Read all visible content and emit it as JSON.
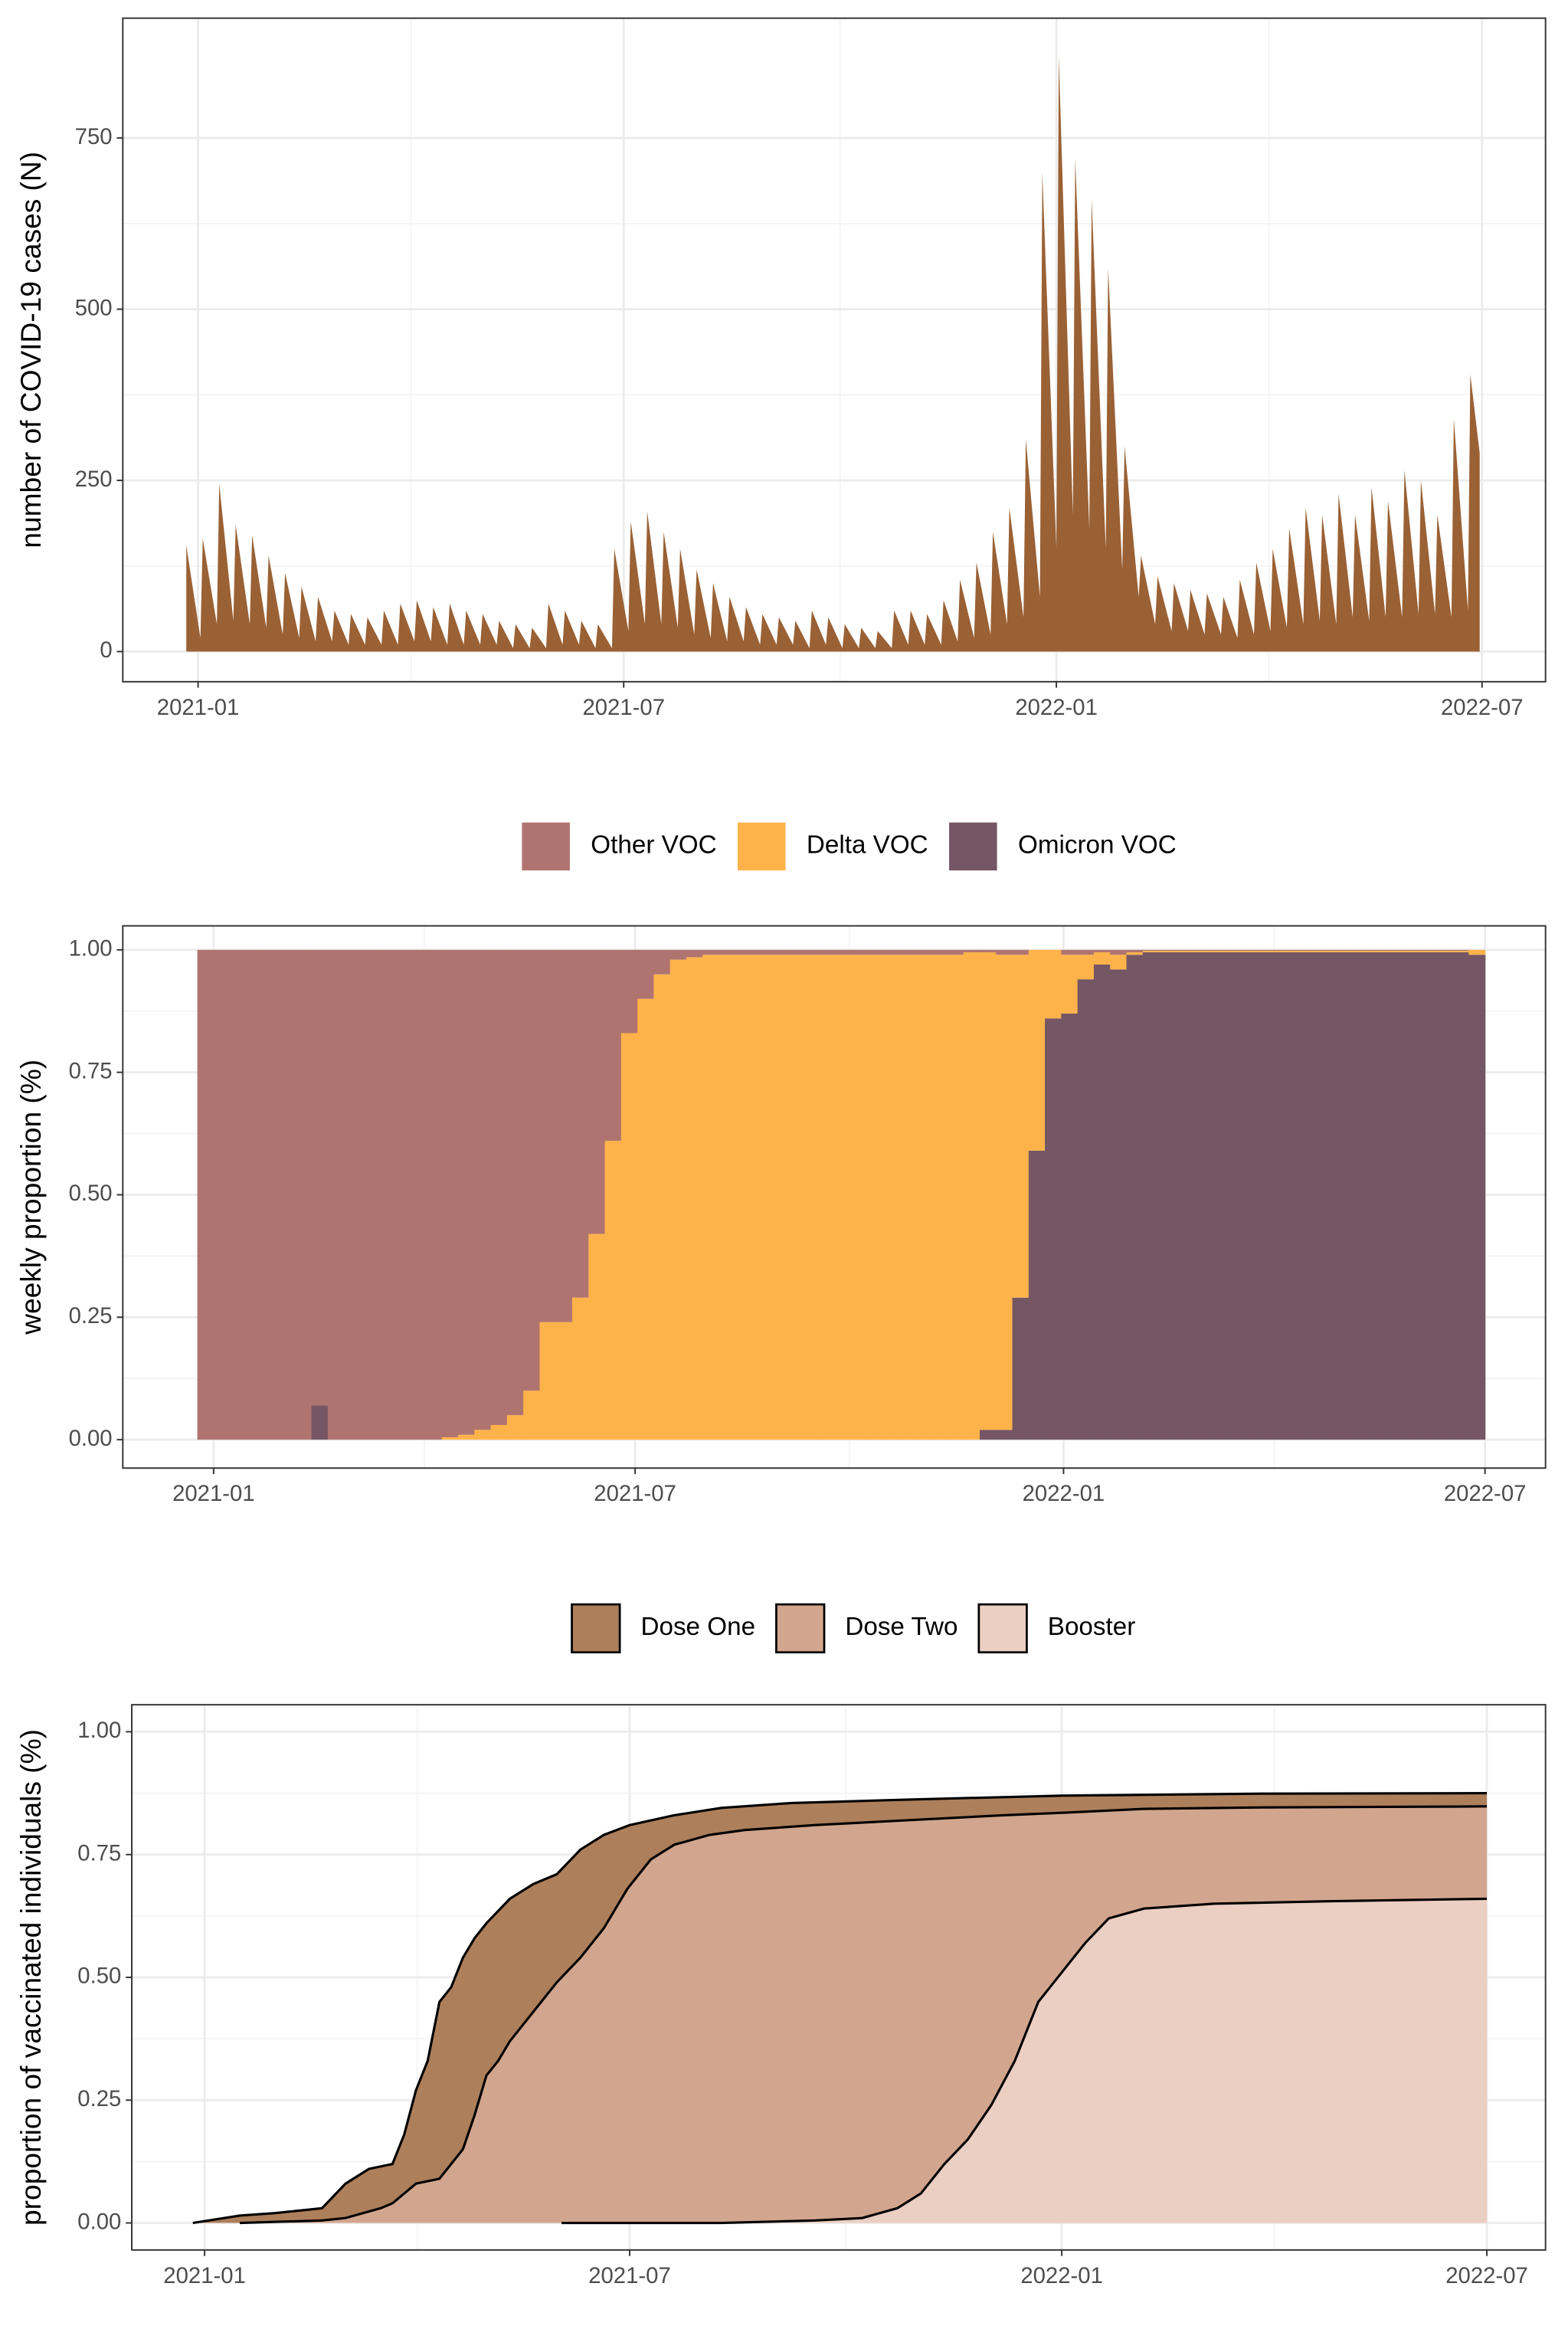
{
  "chart_data": [
    {
      "type": "area",
      "ylabel": "number of COVID-19 cases (N)",
      "color": "#9a6135",
      "grid": true,
      "xlim": [
        -32,
        573
      ],
      "ylim": [
        -44,
        925
      ],
      "xticks": [
        {
          "value": 0,
          "label": "2021-01"
        },
        {
          "value": 181,
          "label": "2021-07"
        },
        {
          "value": 365,
          "label": "2022-01"
        },
        {
          "value": 546,
          "label": "2022-07"
        }
      ],
      "yticks": [
        0,
        250,
        500,
        750
      ],
      "x": [
        -5,
        1,
        2,
        8,
        9,
        15,
        16,
        22,
        23,
        29,
        30,
        36,
        37,
        43,
        44,
        50,
        51,
        57,
        58,
        64,
        65,
        71,
        72,
        78,
        79,
        85,
        86,
        92,
        93,
        99,
        100,
        106,
        107,
        113,
        114,
        120,
        121,
        127,
        128,
        134,
        135,
        141,
        142,
        148,
        149,
        155,
        156,
        162,
        163,
        169,
        170,
        176,
        177,
        183,
        184,
        190,
        191,
        197,
        198,
        204,
        205,
        211,
        212,
        218,
        219,
        225,
        226,
        232,
        233,
        239,
        240,
        246,
        247,
        253,
        254,
        260,
        261,
        267,
        268,
        274,
        275,
        281,
        282,
        288,
        289,
        295,
        296,
        302,
        303,
        309,
        310,
        316,
        317,
        323,
        324,
        330,
        331,
        337,
        338,
        344,
        345,
        351,
        352,
        358,
        359,
        365,
        366,
        372,
        373,
        379,
        380,
        386,
        387,
        393,
        394,
        400,
        401,
        407,
        408,
        414,
        415,
        421,
        422,
        428,
        429,
        435,
        436,
        442,
        443,
        449,
        450,
        456,
        457,
        463,
        464,
        470,
        471,
        477,
        478,
        484,
        485,
        491,
        492,
        498,
        499,
        505,
        506,
        512,
        513,
        519,
        520,
        526,
        527,
        533,
        534,
        540,
        541,
        545
      ],
      "values": [
        155,
        20,
        165,
        40,
        245,
        45,
        185,
        40,
        170,
        35,
        140,
        25,
        115,
        20,
        95,
        15,
        80,
        15,
        60,
        10,
        55,
        10,
        50,
        10,
        60,
        10,
        70,
        15,
        75,
        15,
        65,
        10,
        70,
        10,
        60,
        10,
        55,
        10,
        45,
        5,
        40,
        5,
        35,
        5,
        70,
        10,
        60,
        10,
        45,
        5,
        40,
        5,
        150,
        30,
        190,
        40,
        205,
        40,
        175,
        35,
        150,
        25,
        120,
        20,
        100,
        15,
        80,
        15,
        65,
        10,
        55,
        10,
        50,
        10,
        45,
        5,
        60,
        10,
        50,
        5,
        40,
        5,
        35,
        5,
        30,
        5,
        60,
        10,
        60,
        10,
        55,
        10,
        75,
        15,
        105,
        20,
        130,
        25,
        175,
        40,
        210,
        50,
        310,
        80,
        700,
        150,
        870,
        200,
        720,
        180,
        660,
        150,
        560,
        120,
        300,
        80,
        140,
        40,
        110,
        30,
        100,
        30,
        90,
        25,
        85,
        25,
        80,
        20,
        105,
        25,
        130,
        30,
        150,
        35,
        180,
        40,
        210,
        45,
        200,
        40,
        230,
        50,
        200,
        45,
        240,
        50,
        220,
        50,
        265,
        55,
        250,
        55,
        200,
        50,
        340,
        60,
        405,
        290
      ]
    },
    {
      "type": "stacked_bar",
      "ylabel": "weekly proportion (%)",
      "grid": true,
      "legend": "top",
      "xlim": [
        -39,
        572
      ],
      "ylim": [
        -0.058,
        1.049
      ],
      "xticks": [
        {
          "value": 0,
          "label": "2021-01"
        },
        {
          "value": 181,
          "label": "2021-07"
        },
        {
          "value": 365,
          "label": "2022-01"
        },
        {
          "value": 546,
          "label": "2022-07"
        }
      ],
      "yticks": [
        {
          "value": 0,
          "label": "0.00"
        },
        {
          "value": 0.25,
          "label": "0.25"
        },
        {
          "value": 0.5,
          "label": "0.50"
        },
        {
          "value": 0.75,
          "label": "0.75"
        },
        {
          "value": 1,
          "label": "1.00"
        }
      ],
      "x": [
        -7,
        0,
        7,
        14,
        21,
        28,
        35,
        42,
        49,
        56,
        63,
        70,
        77,
        84,
        91,
        98,
        105,
        112,
        119,
        126,
        133,
        140,
        147,
        154,
        161,
        168,
        175,
        182,
        189,
        196,
        203,
        210,
        217,
        224,
        231,
        238,
        245,
        252,
        259,
        266,
        273,
        280,
        287,
        294,
        301,
        308,
        315,
        322,
        329,
        336,
        343,
        350,
        357,
        364,
        371,
        378,
        385,
        392,
        399,
        406,
        413,
        420,
        427,
        434,
        441,
        448,
        455,
        462,
        469,
        476,
        483,
        490,
        497,
        504,
        511,
        518,
        525,
        532,
        539
      ],
      "series": [
        {
          "name": "Other VOC",
          "color": "#b07470",
          "values": [
            1,
            1,
            1,
            1,
            1,
            1,
            1,
            0.93,
            1,
            1,
            1,
            1,
            1,
            1,
            1,
            0.995,
            0.99,
            0.98,
            0.97,
            0.95,
            0.9,
            0.76,
            0.76,
            0.71,
            0.58,
            0.39,
            0.17,
            0.1,
            0.05,
            0.02,
            0.015,
            0.01,
            0.01,
            0.01,
            0.01,
            0.01,
            0.01,
            0.01,
            0.01,
            0.01,
            0.01,
            0.01,
            0.01,
            0.01,
            0.01,
            0.01,
            0.01,
            0.005,
            0.005,
            0.01,
            0.01,
            0,
            0,
            0.01,
            0.01,
            0.005,
            0.01,
            0.005,
            0.002,
            0.002,
            0.002,
            0.002,
            0.002,
            0.002,
            0.002,
            0.002,
            0.002,
            0.002,
            0.002,
            0.002,
            0.002,
            0.002,
            0.002,
            0.002,
            0.002,
            0.002,
            0.002,
            0.002,
            0
          ]
        },
        {
          "name": "Delta VOC",
          "color": "#feb34a",
          "values": [
            0,
            0,
            0,
            0,
            0,
            0,
            0,
            0,
            0,
            0,
            0,
            0,
            0,
            0,
            0,
            0.005,
            0.01,
            0.02,
            0.03,
            0.05,
            0.1,
            0.24,
            0.24,
            0.29,
            0.42,
            0.61,
            0.83,
            0.9,
            0.95,
            0.98,
            0.985,
            0.99,
            0.99,
            0.99,
            0.99,
            0.99,
            0.99,
            0.99,
            0.99,
            0.99,
            0.99,
            0.99,
            0.99,
            0.99,
            0.99,
            0.99,
            0.99,
            0.995,
            0.975,
            0.97,
            0.7,
            0.41,
            0.14,
            0.12,
            0.05,
            0.025,
            0.03,
            0.005,
            0.003,
            0.003,
            0.003,
            0.003,
            0.003,
            0.003,
            0.003,
            0.003,
            0.003,
            0.003,
            0.003,
            0.003,
            0.003,
            0.003,
            0.003,
            0.003,
            0.003,
            0.003,
            0.003,
            0.003,
            0.01
          ]
        },
        {
          "name": "Omicron VOC",
          "color": "#745664",
          "values": [
            0,
            0,
            0,
            0,
            0,
            0,
            0,
            0.07,
            0,
            0,
            0,
            0,
            0,
            0,
            0,
            0,
            0,
            0,
            0,
            0,
            0,
            0,
            0,
            0,
            0,
            0,
            0,
            0,
            0,
            0,
            0,
            0,
            0,
            0,
            0,
            0,
            0,
            0,
            0,
            0,
            0,
            0,
            0,
            0,
            0,
            0,
            0,
            0,
            0.02,
            0.02,
            0.29,
            0.59,
            0.86,
            0.87,
            0.94,
            0.97,
            0.96,
            0.99,
            0.995,
            0.995,
            0.995,
            0.995,
            0.995,
            0.995,
            0.995,
            0.995,
            0.995,
            0.995,
            0.995,
            0.995,
            0.995,
            0.995,
            0.995,
            0.995,
            0.995,
            0.995,
            0.995,
            0.995,
            0.99
          ]
        }
      ]
    },
    {
      "type": "area",
      "ylabel": "proportion of vaccinated individuals (%)",
      "grid": true,
      "legend": "top",
      "line_color": "#000000",
      "xlim": [
        -31,
        571
      ],
      "ylim": [
        -0.055,
        1.055
      ],
      "xticks": [
        {
          "value": 0,
          "label": "2021-01"
        },
        {
          "value": 181,
          "label": "2021-07"
        },
        {
          "value": 365,
          "label": "2022-01"
        },
        {
          "value": 546,
          "label": "2022-07"
        }
      ],
      "yticks": [
        {
          "value": 0,
          "label": "0.00"
        },
        {
          "value": 0.25,
          "label": "0.25"
        },
        {
          "value": 0.5,
          "label": "0.50"
        },
        {
          "value": 0.75,
          "label": "0.75"
        },
        {
          "value": 1,
          "label": "1.00"
        }
      ],
      "series": [
        {
          "name": "Dose One",
          "color": "#ad7f5b",
          "x": [
            -5,
            15,
            30,
            50,
            60,
            70,
            80,
            85,
            90,
            95,
            100,
            105,
            110,
            115,
            120,
            130,
            140,
            150,
            160,
            170,
            181,
            200,
            220,
            250,
            300,
            365,
            450,
            546
          ],
          "values": [
            0,
            0.015,
            0.02,
            0.03,
            0.08,
            0.11,
            0.12,
            0.18,
            0.27,
            0.33,
            0.45,
            0.48,
            0.54,
            0.58,
            0.61,
            0.66,
            0.69,
            0.71,
            0.76,
            0.79,
            0.81,
            0.83,
            0.845,
            0.855,
            0.862,
            0.87,
            0.874,
            0.875
          ]
        },
        {
          "name": "Dose Two",
          "color": "#d2a68e",
          "x": [
            15,
            50,
            60,
            75,
            80,
            90,
            100,
            110,
            115,
            120,
            125,
            130,
            140,
            150,
            160,
            170,
            180,
            190,
            200,
            215,
            230,
            260,
            300,
            340,
            365,
            400,
            450,
            546
          ],
          "values": [
            0,
            0.005,
            0.01,
            0.03,
            0.04,
            0.08,
            0.09,
            0.15,
            0.22,
            0.3,
            0.33,
            0.37,
            0.43,
            0.49,
            0.54,
            0.6,
            0.68,
            0.74,
            0.77,
            0.79,
            0.8,
            0.81,
            0.82,
            0.83,
            0.835,
            0.843,
            0.846,
            0.848
          ]
        },
        {
          "name": "Booster",
          "color": "#ebcfc2",
          "x": [
            152,
            220,
            260,
            280,
            295,
            305,
            315,
            325,
            335,
            345,
            355,
            365,
            375,
            385,
            400,
            430,
            480,
            546
          ],
          "values": [
            0,
            0,
            0.005,
            0.01,
            0.03,
            0.06,
            0.12,
            0.17,
            0.24,
            0.33,
            0.45,
            0.51,
            0.57,
            0.62,
            0.64,
            0.65,
            0.655,
            0.66
          ]
        }
      ]
    }
  ]
}
